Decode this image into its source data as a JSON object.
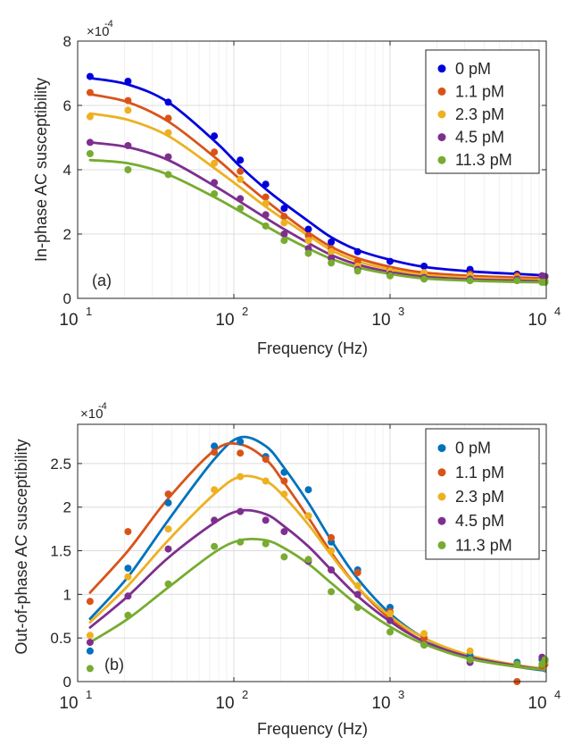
{
  "figure": {
    "background": "#ffffff",
    "axis_color": "#262626",
    "grid_color": "#dcdcdc"
  },
  "chart_data": [
    {
      "type": "scatter",
      "panel_label": "(a)",
      "xlabel": "Frequency (Hz)",
      "ylabel": "In-phase AC susceptibility",
      "y_multiplier": "×10",
      "y_exponent": "-4",
      "xscale": "log",
      "xlim": [
        10,
        10000
      ],
      "ylim": [
        0,
        8
      ],
      "x_ticks": [
        10,
        100,
        1000,
        10000
      ],
      "x_tick_labels": [
        {
          "base": "10",
          "exp": "1"
        },
        {
          "base": "10",
          "exp": "2"
        },
        {
          "base": "10",
          "exp": "3"
        },
        {
          "base": "10",
          "exp": "4"
        }
      ],
      "y_ticks": [
        0,
        2,
        4,
        6,
        8
      ],
      "y_tick_labels": [
        "0",
        "2",
        "4",
        "6",
        "8"
      ],
      "grid": true,
      "legend_position": "top-right",
      "x": [
        12,
        21,
        38,
        75,
        110,
        160,
        210,
        300,
        420,
        620,
        1000,
        1650,
        3250,
        6500,
        9400,
        9800
      ],
      "series": [
        {
          "name": "0 pM",
          "color": "#0000dc",
          "points": [
            6.9,
            6.75,
            6.1,
            5.05,
            4.3,
            3.55,
            2.8,
            2.15,
            1.75,
            1.45,
            1.15,
            1.0,
            0.9,
            0.75,
            0.7,
            0.68
          ],
          "fit": [
            6.85,
            6.65,
            6.1,
            4.9,
            4.1,
            3.4,
            2.95,
            2.4,
            1.9,
            1.5,
            1.2,
            0.98,
            0.84,
            0.76,
            0.72,
            0.71
          ]
        },
        {
          "name": "1.1 pM",
          "color": "#d95319",
          "points": [
            6.4,
            6.15,
            5.6,
            4.55,
            3.95,
            3.15,
            2.55,
            1.95,
            1.55,
            1.15,
            0.9,
            0.8,
            0.75,
            0.7,
            0.55,
            0.55
          ],
          "fit": [
            6.35,
            6.1,
            5.5,
            4.4,
            3.7,
            3.05,
            2.6,
            2.05,
            1.6,
            1.25,
            0.98,
            0.8,
            0.7,
            0.65,
            0.63,
            0.62
          ]
        },
        {
          "name": "2.3 pM",
          "color": "#edb120",
          "points": [
            5.65,
            5.85,
            5.15,
            4.2,
            3.7,
            2.95,
            2.35,
            1.8,
            1.45,
            1.0,
            0.85,
            0.8,
            0.7,
            0.65,
            0.6,
            0.55
          ],
          "fit": [
            5.75,
            5.55,
            5.05,
            4.05,
            3.45,
            2.85,
            2.45,
            1.95,
            1.5,
            1.15,
            0.9,
            0.73,
            0.64,
            0.59,
            0.57,
            0.56
          ]
        },
        {
          "name": "4.5 pM",
          "color": "#7e2f8e",
          "points": [
            4.85,
            4.75,
            4.4,
            3.6,
            3.1,
            2.6,
            2.0,
            1.55,
            1.25,
            0.9,
            0.75,
            0.65,
            0.6,
            0.6,
            0.7,
            0.68
          ],
          "fit": [
            4.85,
            4.7,
            4.3,
            3.5,
            3.0,
            2.5,
            2.15,
            1.72,
            1.35,
            1.05,
            0.82,
            0.67,
            0.59,
            0.55,
            0.53,
            0.52
          ]
        },
        {
          "name": "11.3 pM",
          "color": "#77ac30",
          "points": [
            4.5,
            4.0,
            3.85,
            3.25,
            2.8,
            2.25,
            1.8,
            1.4,
            1.1,
            0.85,
            0.7,
            0.6,
            0.55,
            0.55,
            0.5,
            0.5
          ],
          "fit": [
            4.3,
            4.2,
            3.85,
            3.15,
            2.7,
            2.25,
            1.93,
            1.55,
            1.23,
            0.96,
            0.76,
            0.62,
            0.55,
            0.51,
            0.5,
            0.5
          ]
        }
      ]
    },
    {
      "type": "scatter",
      "panel_label": "(b)",
      "xlabel": "Frequency (Hz)",
      "ylabel": "Out-of-phase AC susceptibility",
      "y_multiplier": "×10",
      "y_exponent": "-4",
      "xscale": "log",
      "xlim": [
        10,
        10000
      ],
      "ylim": [
        0,
        2.95
      ],
      "x_ticks": [
        10,
        100,
        1000,
        10000
      ],
      "x_tick_labels": [
        {
          "base": "10",
          "exp": "1"
        },
        {
          "base": "10",
          "exp": "2"
        },
        {
          "base": "10",
          "exp": "3"
        },
        {
          "base": "10",
          "exp": "4"
        }
      ],
      "y_ticks": [
        0,
        0.5,
        1,
        1.5,
        2,
        2.5
      ],
      "y_tick_labels": [
        "0",
        "0.5",
        "1",
        "1.5",
        "2",
        "2.5"
      ],
      "grid": true,
      "legend_position": "top-right",
      "x": [
        12,
        21,
        38,
        75,
        110,
        160,
        210,
        300,
        420,
        620,
        1000,
        1650,
        3250,
        6500,
        9400,
        9800
      ],
      "series": [
        {
          "name": "0 pM",
          "color": "#0072bd",
          "points": [
            0.35,
            1.3,
            2.05,
            2.7,
            2.75,
            2.58,
            2.4,
            2.2,
            1.6,
            1.28,
            0.85,
            0.5,
            0.3,
            0.22,
            0.25,
            0.25
          ],
          "fit": [
            0.72,
            1.2,
            1.85,
            2.55,
            2.8,
            2.7,
            2.45,
            2.05,
            1.62,
            1.18,
            0.78,
            0.5,
            0.28,
            0.17,
            0.13,
            0.12
          ]
        },
        {
          "name": "1.1 pM",
          "color": "#d95319",
          "points": [
            0.92,
            1.72,
            2.15,
            2.63,
            2.62,
            2.55,
            2.3,
            1.9,
            1.65,
            1.25,
            0.8,
            0.5,
            0.25,
            0.0,
            0.18,
            0.2
          ],
          "fit": [
            1.02,
            1.5,
            2.1,
            2.65,
            2.72,
            2.55,
            2.28,
            1.88,
            1.48,
            1.08,
            0.72,
            0.46,
            0.27,
            0.17,
            0.14,
            0.13
          ]
        },
        {
          "name": "2.3 pM",
          "color": "#edb120",
          "points": [
            0.53,
            1.2,
            1.75,
            2.2,
            2.35,
            2.3,
            2.15,
            1.9,
            1.5,
            1.1,
            0.78,
            0.55,
            0.35,
            0.2,
            0.2,
            0.22
          ],
          "fit": [
            0.68,
            1.1,
            1.62,
            2.15,
            2.35,
            2.3,
            2.12,
            1.8,
            1.45,
            1.08,
            0.75,
            0.5,
            0.3,
            0.19,
            0.15,
            0.14
          ]
        },
        {
          "name": "4.5 pM",
          "color": "#7e2f8e",
          "points": [
            0.45,
            0.98,
            1.52,
            1.85,
            1.95,
            1.85,
            1.72,
            1.38,
            1.28,
            1.0,
            0.7,
            0.42,
            0.22,
            0.2,
            0.28,
            0.25
          ],
          "fit": [
            0.62,
            0.98,
            1.42,
            1.82,
            1.96,
            1.92,
            1.78,
            1.55,
            1.28,
            0.98,
            0.69,
            0.46,
            0.28,
            0.18,
            0.14,
            0.13
          ]
        },
        {
          "name": "11.3 pM",
          "color": "#77ac30",
          "points": [
            0.15,
            0.76,
            1.12,
            1.55,
            1.6,
            1.58,
            1.43,
            1.4,
            1.03,
            0.85,
            0.57,
            0.42,
            0.25,
            0.2,
            0.2,
            0.25
          ],
          "fit": [
            0.45,
            0.72,
            1.08,
            1.48,
            1.62,
            1.62,
            1.53,
            1.35,
            1.13,
            0.88,
            0.63,
            0.43,
            0.26,
            0.17,
            0.14,
            0.13
          ]
        }
      ]
    }
  ]
}
